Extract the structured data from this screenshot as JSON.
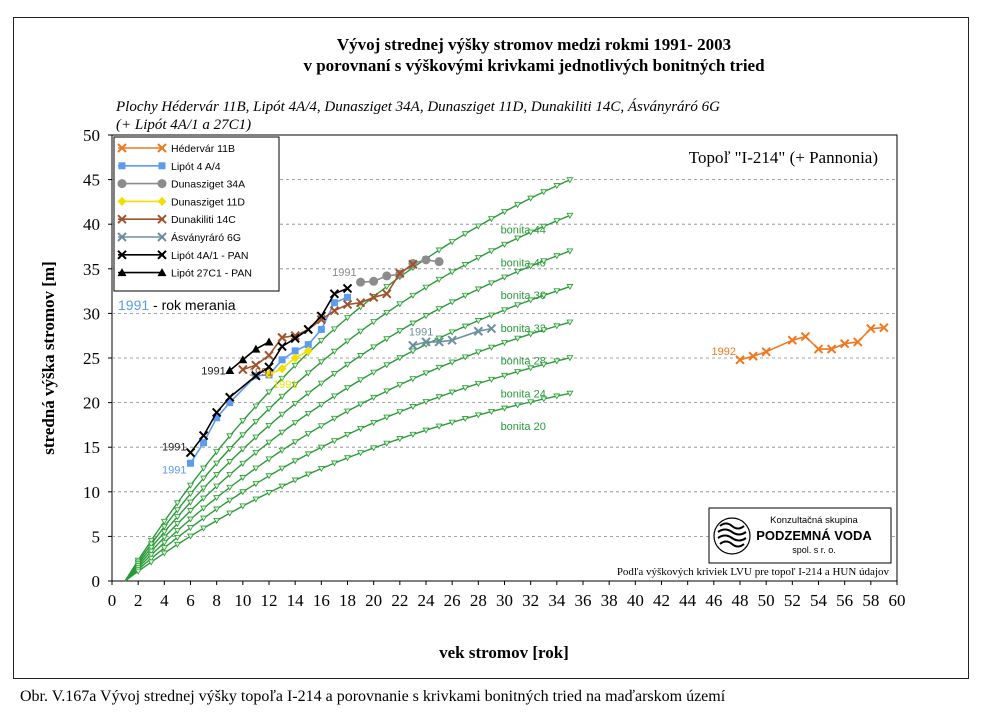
{
  "caption": "Obr. V.167a Vývoj strednej výšky topoľa I-214 a porovnanie s krivkami bonitných tried na maďarskom území",
  "chart_data": {
    "type": "line",
    "title": "Vývoj strednej výšky stromov medzi rokmi 1991- 2003",
    "subtitle": "v porovnaní s výškovými krivkami jednotlivých bonitných tried",
    "plots_line1": "Plochy Hédervár 11B, Lipót 4A/4, Dunasziget 34A, Dunasziget 11D, Dunakiliti 14C, Ásványráró 6G",
    "plots_line2": "(+ Lipót 4A/1 a 27C1)",
    "species_label": "Topoľ \"I-214\" (+ Pannonia)",
    "xlabel": "vek stromov [rok]",
    "ylabel": "stredná výška stromov [m]",
    "xlim": [
      0,
      60
    ],
    "ylim": [
      0,
      50
    ],
    "x_ticks": [
      0,
      2,
      4,
      6,
      8,
      10,
      12,
      14,
      16,
      18,
      20,
      22,
      24,
      26,
      28,
      30,
      32,
      34,
      36,
      38,
      40,
      42,
      44,
      46,
      48,
      50,
      52,
      54,
      56,
      58,
      60
    ],
    "y_ticks": [
      0,
      5,
      10,
      15,
      20,
      25,
      30,
      35,
      40,
      45,
      50
    ],
    "grid": "horizontal dashed",
    "legend_position": "top-left",
    "year_note": {
      "year": "1991",
      "text": " - rok merania"
    },
    "logo": {
      "line1": "Konzultačná skupina",
      "line2": "PODZEMNÁ VODA",
      "line3": "spol. s r. o."
    },
    "source_note": "Podľa výškových kriviek LVU pre topoľ I-214 a HUN údajov",
    "bonita_curves": [
      {
        "name": "bonita 44",
        "asymptote": 62.0
      },
      {
        "name": "bonita 40",
        "asymptote": 56.5
      },
      {
        "name": "bonita 36",
        "asymptote": 51.0
      },
      {
        "name": "bonita 32",
        "asymptote": 45.5
      },
      {
        "name": "bonita 28",
        "asymptote": 40.0
      },
      {
        "name": "bonita 24",
        "asymptote": 34.5
      },
      {
        "name": "bonita 20",
        "asymptote": 29.0
      }
    ],
    "bonita_model": {
      "x0": 1,
      "k": 0.038,
      "x_end": 35
    },
    "series": [
      {
        "name": "Hédervár 11B",
        "color": "#f07820",
        "marker": "x",
        "start_label": "1992",
        "points": [
          [
            48,
            24.8
          ],
          [
            49,
            25.2
          ],
          [
            50,
            25.7
          ],
          [
            52,
            27.0
          ],
          [
            53,
            27.4
          ],
          [
            54,
            26.0
          ],
          [
            55,
            26.0
          ],
          [
            56,
            26.6
          ],
          [
            57,
            26.8
          ],
          [
            58,
            28.3
          ],
          [
            59,
            28.4
          ]
        ]
      },
      {
        "name": "Lipót 4 A/4",
        "color": "#5b9bf0",
        "marker": "square",
        "start_label": "1991",
        "points": [
          [
            6,
            13.2
          ],
          [
            7,
            15.5
          ],
          [
            8,
            18.3
          ],
          [
            9,
            20.0
          ],
          [
            11,
            23.0
          ],
          [
            12,
            23.1
          ],
          [
            13,
            24.8
          ],
          [
            14,
            25.8
          ],
          [
            15,
            26.5
          ],
          [
            16,
            28.2
          ],
          [
            17,
            31.2
          ],
          [
            18,
            31.8
          ]
        ]
      },
      {
        "name": "Dunasziget 34A",
        "color": "#8c8c8c",
        "marker": "circle",
        "start_label": "1991",
        "points": [
          [
            19,
            33.5
          ],
          [
            20,
            33.6
          ],
          [
            21,
            34.2
          ],
          [
            22,
            34.4
          ],
          [
            23,
            35.6
          ],
          [
            24,
            36.0
          ],
          [
            25,
            35.8
          ]
        ]
      },
      {
        "name": "Dunasziget 11D",
        "color": "#f0e000",
        "marker": "diamond",
        "start_label": "1991",
        "points": [
          [
            12,
            23.2
          ],
          [
            13,
            23.8
          ],
          [
            14,
            25.0
          ],
          [
            15,
            25.8
          ]
        ]
      },
      {
        "name": "Dunakiliti 14C",
        "color": "#a0522d",
        "marker": "x",
        "start_label": "1991",
        "points": [
          [
            10,
            23.7
          ],
          [
            11,
            24.2
          ],
          [
            12,
            25.3
          ],
          [
            13,
            27.3
          ],
          [
            14,
            27.5
          ],
          [
            15,
            28.2
          ],
          [
            16,
            29.3
          ],
          [
            17,
            30.3
          ],
          [
            18,
            31.0
          ],
          [
            19,
            31.2
          ],
          [
            20,
            31.8
          ],
          [
            21,
            32.2
          ],
          [
            22,
            34.5
          ],
          [
            23,
            35.5
          ]
        ]
      },
      {
        "name": "Ásványráró 6G",
        "color": "#6e8fa0",
        "marker": "x",
        "start_label": "1991",
        "points": [
          [
            23,
            26.4
          ],
          [
            24,
            26.8
          ],
          [
            25,
            26.8
          ],
          [
            26,
            27.0
          ],
          [
            28,
            28.0
          ],
          [
            29,
            28.3
          ]
        ]
      },
      {
        "name": "Lipót 4A/1 - PAN",
        "color": "#000000",
        "marker": "x",
        "start_label": "1991",
        "points": [
          [
            6,
            14.4
          ],
          [
            7,
            16.3
          ],
          [
            8,
            18.9
          ],
          [
            9,
            20.6
          ],
          [
            11,
            23.0
          ],
          [
            12,
            24.0
          ],
          [
            13,
            26.3
          ],
          [
            14,
            27.2
          ],
          [
            15,
            28.2
          ],
          [
            16,
            29.7
          ],
          [
            17,
            32.2
          ],
          [
            18,
            32.8
          ]
        ]
      },
      {
        "name": "Lipót 27C1 - PAN",
        "color": "#000000",
        "marker": "triangle",
        "start_label": "1991",
        "points": [
          [
            9,
            23.6
          ],
          [
            10,
            24.8
          ],
          [
            11,
            26.0
          ],
          [
            12,
            26.8
          ]
        ]
      }
    ]
  }
}
